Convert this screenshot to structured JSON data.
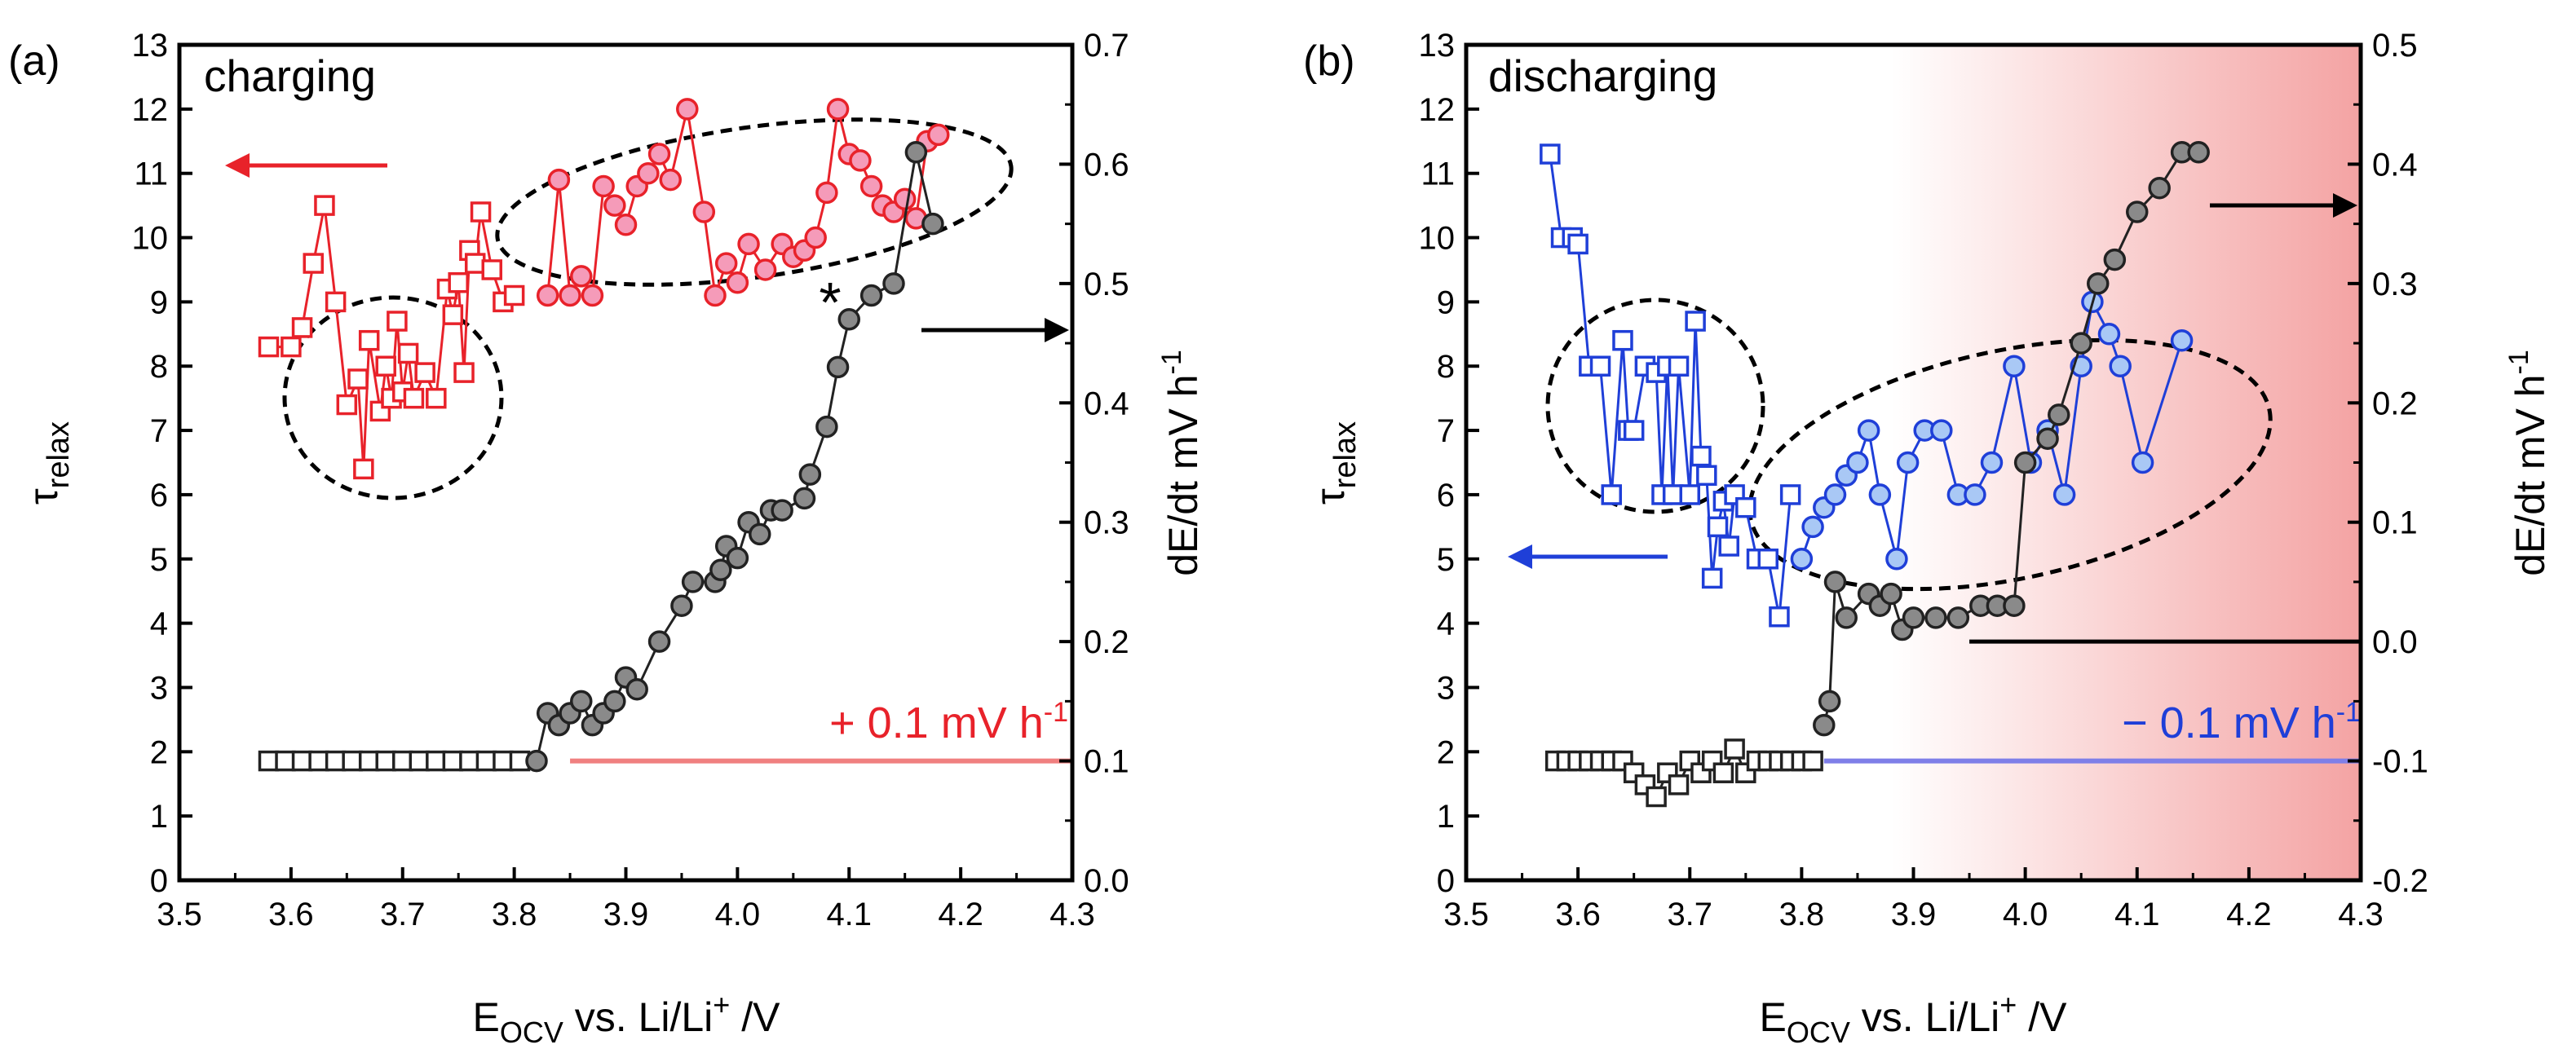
{
  "chart_data": [
    {
      "type": "scatter",
      "panel_label": "(a)",
      "title": "charging",
      "xlabel": "EOCV vs. Li/Li+ /V",
      "xlabel_parts": {
        "main": "E",
        "sub": "OCV",
        "mid": " vs. Li/Li",
        "sup": "+",
        "end": " /V"
      },
      "ylabel_left": "τrelax",
      "ylabel_left_parts": {
        "main": "τ",
        "sub": "relax"
      },
      "ylabel_right": "dE/dt mV h-1",
      "ylabel_right_parts": {
        "main": "dE/dt mV h",
        "sup": "-1"
      },
      "xlim": [
        3.5,
        4.3
      ],
      "ylim_left": [
        0,
        13
      ],
      "ylim_right": [
        0.0,
        0.7
      ],
      "x_ticks": [
        "3.5",
        "3.6",
        "3.7",
        "3.8",
        "3.9",
        "4.0",
        "4.1",
        "4.2",
        "4.3"
      ],
      "y_left_ticks": [
        "0",
        "1",
        "2",
        "3",
        "4",
        "5",
        "6",
        "7",
        "8",
        "9",
        "10",
        "11",
        "12",
        "13"
      ],
      "y_right_ticks": [
        "0.0",
        "0.1",
        "0.2",
        "0.3",
        "0.4",
        "0.5",
        "0.6",
        "0.7"
      ],
      "annotations": {
        "rate_label": "+ 0.1 mV h-1",
        "rate_label_parts": {
          "main": "+ 0.1 mV h",
          "sup": "-1"
        },
        "star": "*",
        "rate_line_value": 0.1,
        "rate_line_x": [
          3.85,
          4.3
        ],
        "rate_line_color": "#f08080",
        "arrow_left_direction": "left",
        "arrow_right_direction": "right",
        "ellipses": [
          "low-voltage cluster",
          "high-voltage cluster"
        ]
      },
      "series": [
        {
          "name": "tau_relax squares",
          "axis": "left",
          "marker": "square",
          "color": "#e8222a",
          "fill": "#ffffff",
          "x": [
            3.58,
            3.6,
            3.61,
            3.62,
            3.63,
            3.64,
            3.65,
            3.66,
            3.665,
            3.67,
            3.68,
            3.685,
            3.69,
            3.695,
            3.7,
            3.705,
            3.71,
            3.72,
            3.73,
            3.74,
            3.745,
            3.75,
            3.755,
            3.76,
            3.765,
            3.77,
            3.78,
            3.79,
            3.8
          ],
          "y": [
            8.3,
            8.3,
            8.6,
            9.6,
            10.5,
            9.0,
            7.4,
            7.8,
            6.4,
            8.4,
            7.3,
            8.0,
            7.5,
            8.7,
            7.6,
            8.2,
            7.5,
            7.9,
            7.5,
            9.2,
            8.8,
            9.3,
            7.9,
            9.8,
            9.6,
            10.4,
            9.5,
            9.0,
            9.1
          ]
        },
        {
          "name": "tau_relax circles",
          "axis": "left",
          "marker": "circle",
          "color": "#e8222a",
          "fill": "#f59bb9",
          "x": [
            3.83,
            3.84,
            3.85,
            3.86,
            3.87,
            3.88,
            3.89,
            3.9,
            3.91,
            3.92,
            3.93,
            3.94,
            3.955,
            3.97,
            3.98,
            3.99,
            4.0,
            4.01,
            4.025,
            4.04,
            4.05,
            4.06,
            4.07,
            4.08,
            4.09,
            4.1,
            4.11,
            4.12,
            4.13,
            4.14,
            4.15,
            4.16,
            4.17,
            4.18
          ],
          "y": [
            9.1,
            10.9,
            9.1,
            9.4,
            9.1,
            10.8,
            10.5,
            10.2,
            10.8,
            11.0,
            11.3,
            10.9,
            12.0,
            10.4,
            9.1,
            9.6,
            9.3,
            9.9,
            9.5,
            9.9,
            9.7,
            9.8,
            10.0,
            10.7,
            12.0,
            11.3,
            11.2,
            10.8,
            10.5,
            10.4,
            10.6,
            10.3,
            11.5,
            11.6
          ]
        },
        {
          "name": "dE/dt squares",
          "axis": "right",
          "marker": "square",
          "color": "#222222",
          "fill": "#ffffff",
          "x": [
            3.58,
            3.595,
            3.61,
            3.625,
            3.64,
            3.655,
            3.67,
            3.685,
            3.7,
            3.715,
            3.73,
            3.745,
            3.76,
            3.775,
            3.79,
            3.805
          ],
          "y": [
            0.1,
            0.1,
            0.1,
            0.1,
            0.1,
            0.1,
            0.1,
            0.1,
            0.1,
            0.1,
            0.1,
            0.1,
            0.1,
            0.1,
            0.1,
            0.1
          ]
        },
        {
          "name": "dE/dt circles",
          "axis": "right",
          "marker": "circle",
          "color": "#222222",
          "fill": "#8a8a8a",
          "x": [
            3.82,
            3.83,
            3.84,
            3.85,
            3.86,
            3.87,
            3.88,
            3.89,
            3.9,
            3.91,
            3.93,
            3.95,
            3.96,
            3.98,
            3.985,
            3.99,
            4.0,
            4.01,
            4.02,
            4.03,
            4.04,
            4.06,
            4.065,
            4.08,
            4.09,
            4.1,
            4.12,
            4.14,
            4.16,
            4.175
          ],
          "y": [
            0.1,
            0.14,
            0.13,
            0.14,
            0.15,
            0.13,
            0.14,
            0.15,
            0.17,
            0.16,
            0.2,
            0.23,
            0.25,
            0.25,
            0.26,
            0.28,
            0.27,
            0.3,
            0.29,
            0.31,
            0.31,
            0.32,
            0.34,
            0.38,
            0.43,
            0.47,
            0.49,
            0.5,
            0.61,
            0.55
          ]
        }
      ]
    },
    {
      "type": "scatter",
      "panel_label": "(b)",
      "title": "discharging",
      "xlabel": "EOCV vs. Li/Li+ /V",
      "xlabel_parts": {
        "main": "E",
        "sub": "OCV",
        "mid": " vs. Li/Li",
        "sup": "+",
        "end": " /V"
      },
      "ylabel_left": "τrelax",
      "ylabel_left_parts": {
        "main": "τ",
        "sub": "relax"
      },
      "ylabel_right": "dE/dt mV h-1",
      "ylabel_right_parts": {
        "main": "dE/dt mV h",
        "sup": "-1"
      },
      "xlim": [
        3.5,
        4.3
      ],
      "ylim_left": [
        0,
        13
      ],
      "ylim_right": [
        -0.2,
        0.5
      ],
      "x_ticks": [
        "3.5",
        "3.6",
        "3.7",
        "3.8",
        "3.9",
        "4.0",
        "4.1",
        "4.2",
        "4.3"
      ],
      "y_left_ticks": [
        "0",
        "1",
        "2",
        "3",
        "4",
        "5",
        "6",
        "7",
        "8",
        "9",
        "10",
        "11",
        "12",
        "13"
      ],
      "y_right_ticks": [
        "-0.2",
        "-0.1",
        "0.0",
        "0.1",
        "0.2",
        "0.3",
        "0.4",
        "0.5"
      ],
      "annotations": {
        "rate_label": "− 0.1 mV h-1",
        "rate_label_parts": {
          "main": "− 0.1 mV h",
          "sup": "-1"
        },
        "rate_line_value": -0.1,
        "rate_line_x": [
          3.82,
          4.3
        ],
        "rate_line_color": "#7f7fe8",
        "zero_line_value": 0.0,
        "zero_line_x": [
          3.95,
          4.3
        ],
        "shaded_region_x": [
          3.88,
          4.3
        ],
        "shade_color": "#f4a3a3",
        "arrow_left_direction": "left",
        "arrow_right_direction": "right",
        "ellipses": [
          "low-voltage cluster",
          "high-voltage cluster"
        ]
      },
      "series": [
        {
          "name": "tau_relax squares",
          "axis": "left",
          "marker": "square",
          "color": "#1f3fd8",
          "fill": "#ffffff",
          "x": [
            3.575,
            3.585,
            3.595,
            3.6,
            3.61,
            3.62,
            3.63,
            3.64,
            3.645,
            3.65,
            3.66,
            3.67,
            3.675,
            3.68,
            3.685,
            3.69,
            3.7,
            3.705,
            3.71,
            3.715,
            3.72,
            3.725,
            3.73,
            3.735,
            3.74,
            3.75,
            3.76,
            3.77,
            3.78,
            3.79
          ],
          "y": [
            11.3,
            10.0,
            10.0,
            9.9,
            8.0,
            8.0,
            6.0,
            8.4,
            7.0,
            7.0,
            8.0,
            7.9,
            6.0,
            8.0,
            6.0,
            8.0,
            6.0,
            8.7,
            6.6,
            6.3,
            4.7,
            5.5,
            5.9,
            5.2,
            6.0,
            5.8,
            5.0,
            5.0,
            4.1,
            6.0
          ]
        },
        {
          "name": "tau_relax circles",
          "axis": "left",
          "marker": "circle",
          "color": "#1f3fd8",
          "fill": "#a9c8f5",
          "x": [
            3.8,
            3.81,
            3.82,
            3.83,
            3.84,
            3.85,
            3.86,
            3.87,
            3.885,
            3.895,
            3.91,
            3.925,
            3.94,
            3.955,
            3.97,
            3.99,
            4.005,
            4.02,
            4.035,
            4.05,
            4.06,
            4.075,
            4.085,
            4.105,
            4.14
          ],
          "y": [
            5.0,
            5.5,
            5.8,
            6.0,
            6.3,
            6.5,
            7.0,
            6.0,
            5.0,
            6.5,
            7.0,
            7.0,
            6.0,
            6.0,
            6.5,
            8.0,
            6.5,
            7.0,
            6.0,
            8.0,
            9.0,
            8.5,
            8.0,
            6.5,
            8.4
          ]
        },
        {
          "name": "dE/dt squares",
          "axis": "right",
          "marker": "square",
          "color": "#222222",
          "fill": "#ffffff",
          "x": [
            3.58,
            3.59,
            3.6,
            3.61,
            3.62,
            3.63,
            3.64,
            3.65,
            3.66,
            3.67,
            3.68,
            3.69,
            3.7,
            3.71,
            3.72,
            3.73,
            3.74,
            3.75,
            3.76,
            3.77,
            3.78,
            3.79,
            3.8,
            3.81
          ],
          "y": [
            -0.1,
            -0.1,
            -0.1,
            -0.1,
            -0.1,
            -0.1,
            -0.1,
            -0.11,
            -0.12,
            -0.13,
            -0.11,
            -0.12,
            -0.1,
            -0.11,
            -0.1,
            -0.11,
            -0.09,
            -0.11,
            -0.1,
            -0.1,
            -0.1,
            -0.1,
            -0.1,
            -0.1
          ]
        },
        {
          "name": "dE/dt circles",
          "axis": "right",
          "marker": "circle",
          "color": "#222222",
          "fill": "#8a8a8a",
          "x": [
            3.82,
            3.825,
            3.83,
            3.84,
            3.86,
            3.87,
            3.88,
            3.89,
            3.9,
            3.92,
            3.94,
            3.96,
            3.975,
            3.99,
            4.0,
            4.02,
            4.03,
            4.05,
            4.065,
            4.08,
            4.1,
            4.12,
            4.14,
            4.155
          ],
          "y": [
            -0.07,
            -0.05,
            0.05,
            0.02,
            0.04,
            0.03,
            0.04,
            0.01,
            0.02,
            0.02,
            0.02,
            0.03,
            0.03,
            0.03,
            0.15,
            0.17,
            0.19,
            0.25,
            0.3,
            0.32,
            0.36,
            0.38,
            0.41,
            0.41
          ]
        }
      ]
    }
  ]
}
